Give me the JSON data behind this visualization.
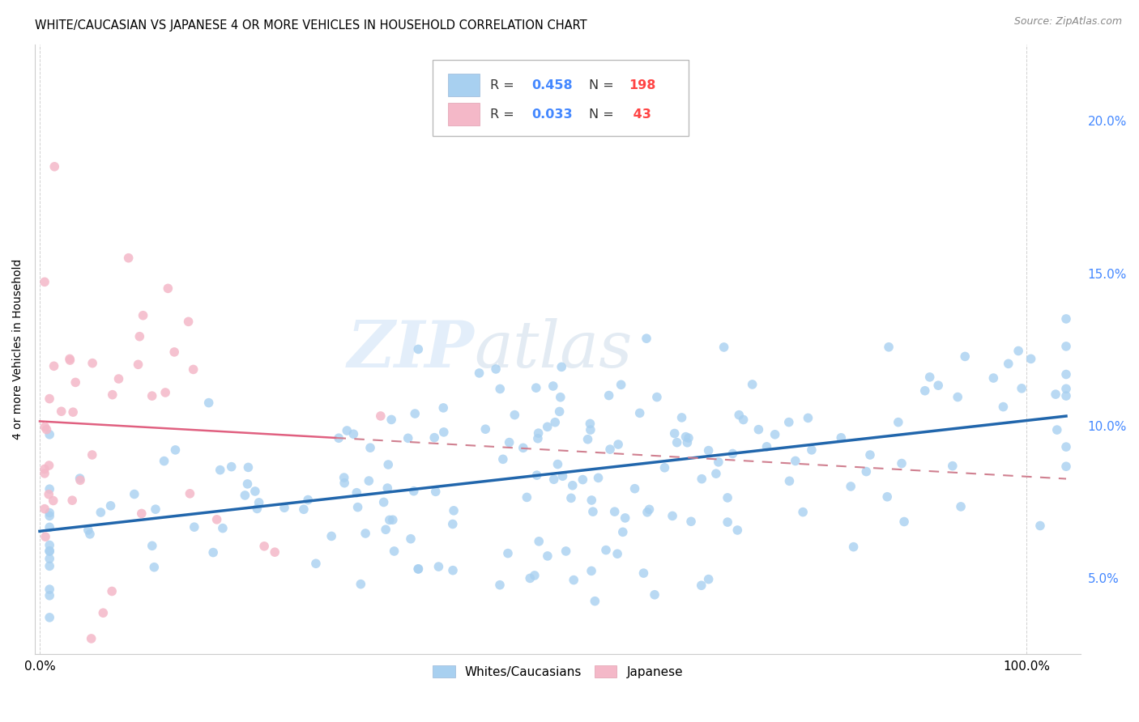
{
  "title": "WHITE/CAUCASIAN VS JAPANESE 4 OR MORE VEHICLES IN HOUSEHOLD CORRELATION CHART",
  "source": "Source: ZipAtlas.com",
  "ylabel": "4 or more Vehicles in Household",
  "watermark_zip": "ZIP",
  "watermark_atlas": "atlas",
  "blue_color": "#a8d0f0",
  "blue_line_color": "#2166ac",
  "pink_color": "#f4b8c8",
  "pink_line_color": "#e06080",
  "pink_line_dashed_color": "#d08090",
  "ytick_color": "#4488ff",
  "N_color": "#ff4444",
  "background_color": "#ffffff",
  "grid_color": "#d0d0d0",
  "legend_R_color": "#4488ff",
  "legend_N_color": "#ff4444",
  "legend_text_color": "#333333"
}
